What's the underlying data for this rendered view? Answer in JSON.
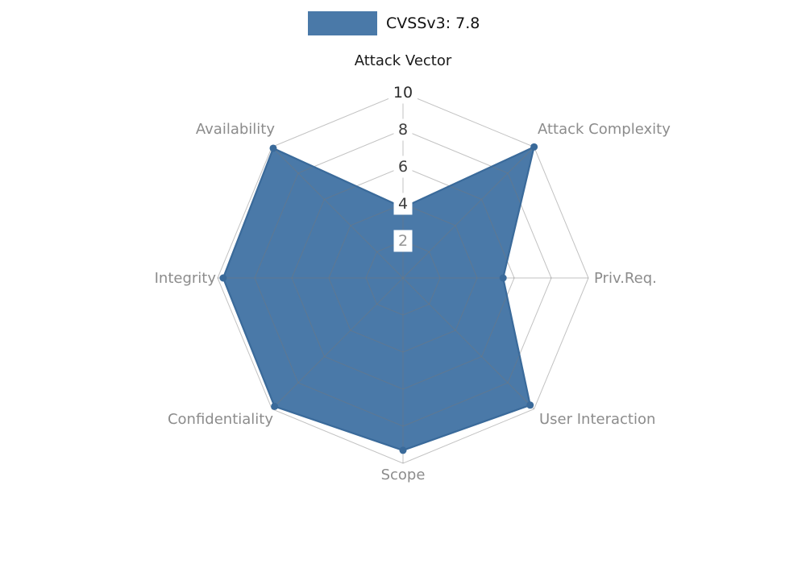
{
  "legend": {
    "label": "CVSSv3: 7.8"
  },
  "chart_data": {
    "type": "radar",
    "title": "CVSSv3: 7.8",
    "score": 7.8,
    "categories": [
      "Attack Vector",
      "Attack Complexity",
      "Priv.Req.",
      "User Interaction",
      "Scope",
      "Confidentiality",
      "Integrity",
      "Availability"
    ],
    "values": [
      3.8,
      10,
      5.4,
      9.7,
      9.3,
      9.8,
      9.7,
      9.9
    ],
    "max": 10,
    "ticks": [
      2,
      4,
      6,
      8,
      10
    ],
    "tick_colors": [
      "#949494",
      "#3d3d3d",
      "#3d3d3d",
      "#3d3d3d",
      "#2b2b2b"
    ],
    "category_colors": [
      "#1a1a1a",
      "#8c8c8c",
      "#8c8c8c",
      "#8c8c8c",
      "#8c8c8c",
      "#8c8c8c",
      "#8c8c8c",
      "#8c8c8c"
    ],
    "fill_color": "#4a79a8",
    "edge_color": "#3a6a9a",
    "marker_color": "#3a6a9a",
    "grid_color_rgba": "rgba(120,120,120,0.45)",
    "legend_position": "top-center",
    "grid": "spiderweb, 5 rings + 8 spokes",
    "axis_start": "top, clockwise"
  }
}
